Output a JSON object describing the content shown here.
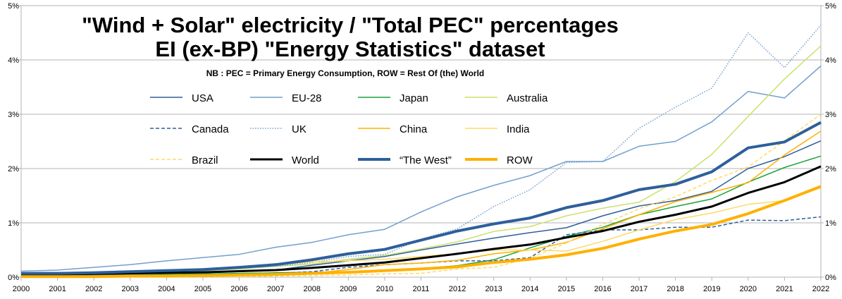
{
  "chart_data": {
    "type": "line",
    "title": "\"Wind + Solar\" electricity / \"Total PEC\" percentages",
    "subtitle": "EI (ex-BP) \"Energy Statistics\" dataset",
    "note": "NB : PEC = Primary Energy Consumption, ROW = Rest Of (the) World",
    "xlabel": "",
    "ylabel": "",
    "ylim": [
      0,
      5
    ],
    "y_ticks": [
      "0%",
      "1%",
      "2%",
      "3%",
      "4%",
      "5%"
    ],
    "y_axis_sides": "left and right",
    "grid": "horizontal",
    "legend_placement": "top-left, inside plot",
    "x": [
      "2000",
      "2001",
      "2002",
      "2003",
      "2004",
      "2005",
      "2006",
      "2007",
      "2008",
      "2009",
      "2010",
      "2011",
      "2012",
      "2013",
      "2014",
      "2015",
      "2016",
      "2017",
      "2018",
      "2019",
      "2020",
      "2021",
      "2022"
    ],
    "series": [
      {
        "name": "USA",
        "color": "#2e5f9b",
        "style": "solid",
        "width": 1.5,
        "values": [
          0.04,
          0.05,
          0.05,
          0.06,
          0.07,
          0.08,
          0.1,
          0.13,
          0.22,
          0.3,
          0.38,
          0.5,
          0.61,
          0.72,
          0.82,
          0.91,
          1.13,
          1.31,
          1.41,
          1.58,
          2.0,
          2.22,
          2.51
        ]
      },
      {
        "name": "EU-28",
        "color": "#729fcf",
        "style": "solid",
        "width": 1.5,
        "values": [
          0.11,
          0.13,
          0.18,
          0.23,
          0.3,
          0.36,
          0.42,
          0.55,
          0.64,
          0.78,
          0.88,
          1.2,
          1.48,
          1.69,
          1.87,
          2.13,
          2.13,
          2.41,
          2.5,
          2.86,
          3.42,
          3.3,
          3.89
        ]
      },
      {
        "name": "Japan",
        "color": "#1aa33a",
        "style": "solid",
        "width": 1.5,
        "values": [
          0.02,
          0.03,
          0.03,
          0.04,
          0.05,
          0.06,
          0.07,
          0.08,
          0.09,
          0.1,
          0.13,
          0.16,
          0.21,
          0.32,
          0.54,
          0.75,
          0.92,
          1.15,
          1.3,
          1.44,
          1.75,
          2.02,
          2.23
        ]
      },
      {
        "name": "Australia",
        "color": "#c9e26a",
        "style": "solid",
        "width": 1.5,
        "values": [
          0.05,
          0.06,
          0.07,
          0.08,
          0.1,
          0.12,
          0.15,
          0.2,
          0.24,
          0.33,
          0.4,
          0.52,
          0.65,
          0.84,
          0.93,
          1.13,
          1.27,
          1.38,
          1.76,
          2.26,
          2.96,
          3.65,
          4.26
        ]
      },
      {
        "name": "Canada",
        "color": "#2e5f9b",
        "style": "dashed",
        "width": 1.5,
        "values": [
          0.0,
          0.01,
          0.01,
          0.02,
          0.03,
          0.04,
          0.05,
          0.07,
          0.1,
          0.18,
          0.23,
          0.26,
          0.3,
          0.3,
          0.36,
          0.78,
          0.87,
          0.87,
          0.92,
          0.92,
          1.05,
          1.04,
          1.11
        ]
      },
      {
        "name": "UK",
        "color": "#729fcf",
        "style": "dotted",
        "width": 1.5,
        "values": [
          0.01,
          0.02,
          0.03,
          0.05,
          0.07,
          0.12,
          0.16,
          0.2,
          0.27,
          0.38,
          0.42,
          0.7,
          0.89,
          1.3,
          1.61,
          2.11,
          2.13,
          2.74,
          3.13,
          3.48,
          4.5,
          3.86,
          4.64
        ]
      },
      {
        "name": "China",
        "color": "#ffb000",
        "style": "solid",
        "width": 1.5,
        "values": [
          0.01,
          0.01,
          0.01,
          0.01,
          0.02,
          0.02,
          0.03,
          0.04,
          0.07,
          0.14,
          0.23,
          0.26,
          0.31,
          0.43,
          0.5,
          0.64,
          0.89,
          1.15,
          1.39,
          1.56,
          1.74,
          2.25,
          2.69
        ]
      },
      {
        "name": "India",
        "color": "#ffd966",
        "style": "solid",
        "width": 1.5,
        "values": [
          0.03,
          0.04,
          0.05,
          0.08,
          0.12,
          0.15,
          0.19,
          0.23,
          0.28,
          0.3,
          0.33,
          0.38,
          0.43,
          0.5,
          0.5,
          0.48,
          0.66,
          0.87,
          1.06,
          1.18,
          1.34,
          1.41,
          1.65
        ]
      },
      {
        "name": "Brazil",
        "color": "#ffd966",
        "style": "dashed",
        "width": 1.5,
        "values": [
          0.0,
          0.0,
          0.0,
          0.0,
          0.0,
          0.01,
          0.01,
          0.02,
          0.03,
          0.04,
          0.06,
          0.07,
          0.15,
          0.18,
          0.35,
          0.63,
          0.97,
          1.26,
          1.48,
          1.78,
          2.03,
          2.51,
          3.0
        ]
      },
      {
        "name": "World",
        "color": "#000000",
        "style": "solid",
        "width": 3,
        "values": [
          0.05,
          0.05,
          0.06,
          0.07,
          0.08,
          0.09,
          0.11,
          0.13,
          0.17,
          0.22,
          0.27,
          0.35,
          0.43,
          0.52,
          0.6,
          0.73,
          0.85,
          1.02,
          1.15,
          1.3,
          1.55,
          1.75,
          2.04
        ]
      },
      {
        "name": "“The West”",
        "color": "#2e5f9b",
        "style": "solid",
        "width": 4,
        "values": [
          0.07,
          0.07,
          0.08,
          0.1,
          0.12,
          0.14,
          0.18,
          0.23,
          0.32,
          0.43,
          0.51,
          0.68,
          0.85,
          0.98,
          1.09,
          1.28,
          1.41,
          1.61,
          1.71,
          1.94,
          2.38,
          2.49,
          2.85
        ]
      },
      {
        "name": "ROW",
        "color": "#ffb000",
        "style": "solid",
        "width": 4,
        "values": [
          0.01,
          0.01,
          0.01,
          0.02,
          0.02,
          0.03,
          0.04,
          0.05,
          0.07,
          0.09,
          0.12,
          0.15,
          0.19,
          0.27,
          0.33,
          0.41,
          0.53,
          0.7,
          0.85,
          0.97,
          1.17,
          1.41,
          1.67
        ]
      }
    ]
  }
}
